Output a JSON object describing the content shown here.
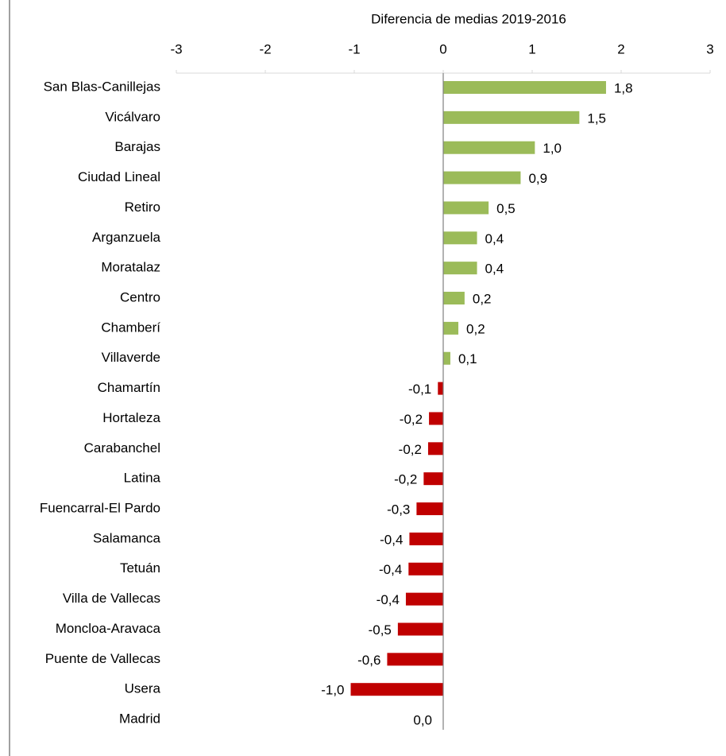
{
  "chart_data": {
    "type": "barh",
    "title": "Diferencia de medias 2019-2016",
    "categories": [
      "San Blas-Canillejas",
      "Vicálvaro",
      "Barajas",
      "Ciudad Lineal",
      "Retiro",
      "Arganzuela",
      "Moratalaz",
      "Centro",
      "Chamberí",
      "Villaverde",
      "Chamartín",
      "Hortaleza",
      "Carabanchel",
      "Latina",
      "Fuencarral-El Pardo",
      "Salamanca",
      "Tetuán",
      "Villa de Vallecas",
      "Moncloa-Aravaca",
      "Puente de Vallecas",
      "Usera",
      "Madrid"
    ],
    "values": [
      1.83,
      1.53,
      1.03,
      0.87,
      0.51,
      0.38,
      0.38,
      0.24,
      0.17,
      0.08,
      -0.06,
      -0.16,
      -0.17,
      -0.22,
      -0.3,
      -0.38,
      -0.39,
      -0.42,
      -0.51,
      -0.63,
      -1.04,
      0.0
    ],
    "value_labels": [
      "1,8",
      "1,5",
      "1,0",
      "0,9",
      "0,5",
      "0,4",
      "0,4",
      "0,2",
      "0,2",
      "0,1",
      "-0,1",
      "-0,2",
      "-0,2",
      "-0,2",
      "-0,3",
      "-0,4",
      "-0,4",
      "-0,4",
      "-0,5",
      "-0,6",
      "-1,0",
      "0,0"
    ],
    "color": "#9bbb59",
    "negative_color": "#c00000",
    "xlim": [
      -3,
      3
    ],
    "xticks": [
      -3,
      -2,
      -1,
      0,
      1,
      2,
      3
    ]
  }
}
